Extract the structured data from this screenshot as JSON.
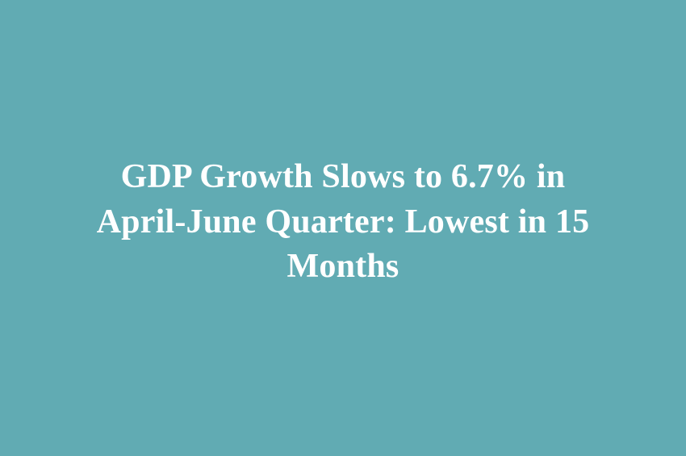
{
  "headline": {
    "full_text": "GDP Growth Slows to 6.7% in April-June Quarter: Lowest in 15 Months",
    "lines": [
      "GDP Growth Slows to 6.7% in",
      "April-June Quarter: Lowest in 15",
      "Months"
    ]
  },
  "colors": {
    "background": "#61abb3",
    "text": "#ffffff"
  }
}
